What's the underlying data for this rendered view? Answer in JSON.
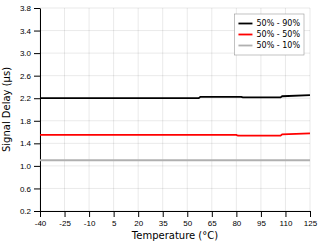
{
  "chart_data": {
    "type": "line",
    "xlabel": "Temperature (°C)",
    "ylabel": "Signal Delay (μs)",
    "xlim": [
      -40,
      125
    ],
    "ylim": [
      0.2,
      3.8
    ],
    "xticks": [
      -40,
      -25,
      -10,
      5,
      20,
      35,
      50,
      65,
      80,
      95,
      110,
      125
    ],
    "yticks": [
      0.2,
      0.6,
      {
        "value": 1.0,
        "label": "1.0"
      },
      1.4,
      1.8,
      2.2,
      2.6,
      {
        "value": 3.0,
        "label": "3.0"
      },
      3.4,
      3.8
    ],
    "series": [
      {
        "name": "50% - 90%",
        "color": "#000000",
        "x": [
          -40,
          57,
          58,
          83,
          84,
          107,
          108,
          125
        ],
        "values": [
          2.2,
          2.2,
          2.225,
          2.225,
          2.215,
          2.215,
          2.235,
          2.255
        ]
      },
      {
        "name": "50% - 50%",
        "color": "#ff0000",
        "x": [
          -40,
          80,
          81,
          107,
          108,
          125
        ],
        "values": [
          1.55,
          1.55,
          1.535,
          1.535,
          1.56,
          1.575
        ]
      },
      {
        "name": "50% - 10%",
        "color": "#b0b0b0",
        "x": [
          -40,
          125
        ],
        "values": [
          1.1,
          1.1
        ]
      }
    ],
    "grid": true,
    "legend": "upper right"
  }
}
